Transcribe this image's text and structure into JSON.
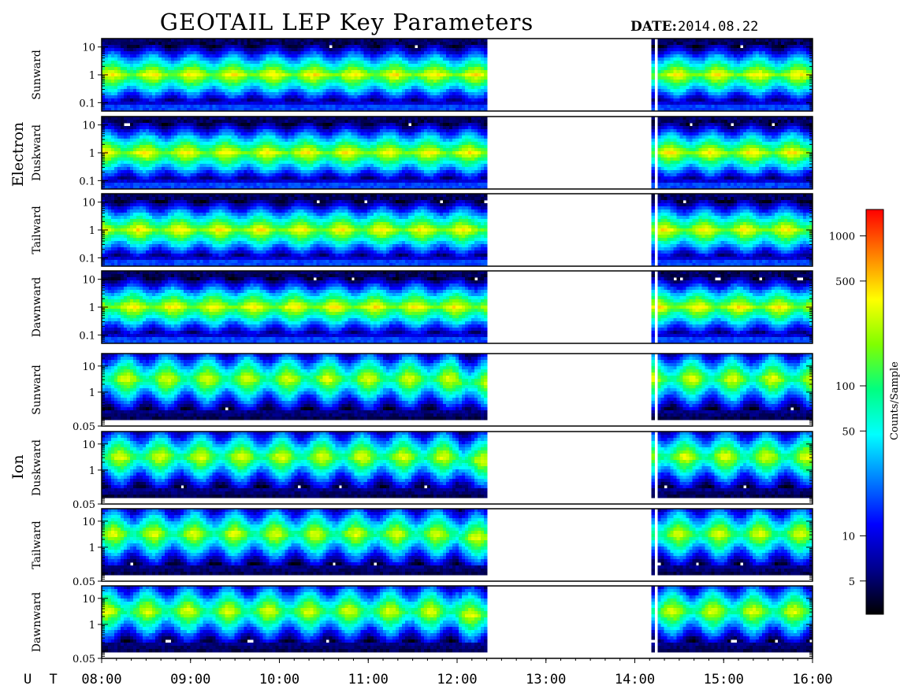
{
  "title": "GEOTAIL LEP Key Parameters",
  "date_label": "DATE:",
  "date_value": "2014.08.22",
  "ut_label": "U T",
  "colorbar": {
    "label": "Counts/Sample",
    "scale": "log",
    "range": [
      3,
      1500
    ],
    "ticks": [
      {
        "value": 1000,
        "label": "1000"
      },
      {
        "value": 500,
        "label": "500"
      },
      {
        "value": 100,
        "label": "100"
      },
      {
        "value": 50,
        "label": "50"
      },
      {
        "value": 10,
        "label": "10"
      },
      {
        "value": 5,
        "label": "5"
      }
    ],
    "colors": [
      "#000000",
      "#00008c",
      "#0000ff",
      "#0080ff",
      "#00ffff",
      "#00ff80",
      "#80ff00",
      "#ffff00",
      "#ff8000",
      "#ff0000"
    ]
  },
  "chart_data": {
    "type": "heatmap",
    "title": "GEOTAIL LEP Key Parameters",
    "x_axis": {
      "label": "U T",
      "ticks": [
        "08:00",
        "09:00",
        "10:00",
        "11:00",
        "12:00",
        "13:00",
        "14:00",
        "15:00",
        "16:00"
      ],
      "range_hours": [
        8,
        16
      ]
    },
    "data_coverage_hours": [
      [
        8.0,
        12.33
      ],
      [
        14.19,
        14.22
      ],
      [
        14.25,
        16.0
      ]
    ],
    "groups": [
      {
        "name": "Electron",
        "y_scale": "log",
        "panels": [
          {
            "name": "Sunward",
            "ylim": [
              0.05,
              20
            ],
            "ticks": [
              {
                "value": 10,
                "label": "10"
              },
              {
                "value": 1,
                "label": "1"
              },
              {
                "value": 0.1,
                "label": "0.1"
              }
            ]
          },
          {
            "name": "Duskward",
            "ylim": [
              0.05,
              20
            ],
            "ticks": [
              {
                "value": 10,
                "label": "10"
              },
              {
                "value": 1,
                "label": "1"
              },
              {
                "value": 0.1,
                "label": "0.1"
              }
            ]
          },
          {
            "name": "Tailward",
            "ylim": [
              0.05,
              20
            ],
            "ticks": [
              {
                "value": 10,
                "label": "10"
              },
              {
                "value": 1,
                "label": "1"
              },
              {
                "value": 0.1,
                "label": "0.1"
              }
            ]
          },
          {
            "name": "Dawnward",
            "ylim": [
              0.05,
              20
            ],
            "ticks": [
              {
                "value": 10,
                "label": "10"
              },
              {
                "value": 1,
                "label": "1"
              },
              {
                "value": 0.1,
                "label": "0.1"
              }
            ]
          }
        ]
      },
      {
        "name": "Ion",
        "y_scale": "log",
        "panels": [
          {
            "name": "Sunward",
            "ylim": [
              0.05,
              30
            ],
            "ticks": [
              {
                "value": 10,
                "label": "10"
              },
              {
                "value": 1,
                "label": "1"
              },
              {
                "value": 0.05,
                "label": "0.05"
              }
            ]
          },
          {
            "name": "Duskward",
            "ylim": [
              0.05,
              30
            ],
            "ticks": [
              {
                "value": 10,
                "label": "10"
              },
              {
                "value": 1,
                "label": "1"
              },
              {
                "value": 0.05,
                "label": "0.05"
              }
            ]
          },
          {
            "name": "Tailward",
            "ylim": [
              0.05,
              30
            ],
            "ticks": [
              {
                "value": 10,
                "label": "10"
              },
              {
                "value": 1,
                "label": "1"
              },
              {
                "value": 0.05,
                "label": "0.05"
              }
            ]
          },
          {
            "name": "Dawnward",
            "ylim": [
              0.05,
              30
            ],
            "ticks": [
              {
                "value": 10,
                "label": "10"
              },
              {
                "value": 1,
                "label": "1"
              },
              {
                "value": 0.05,
                "label": "0.05"
              }
            ]
          }
        ]
      }
    ]
  }
}
